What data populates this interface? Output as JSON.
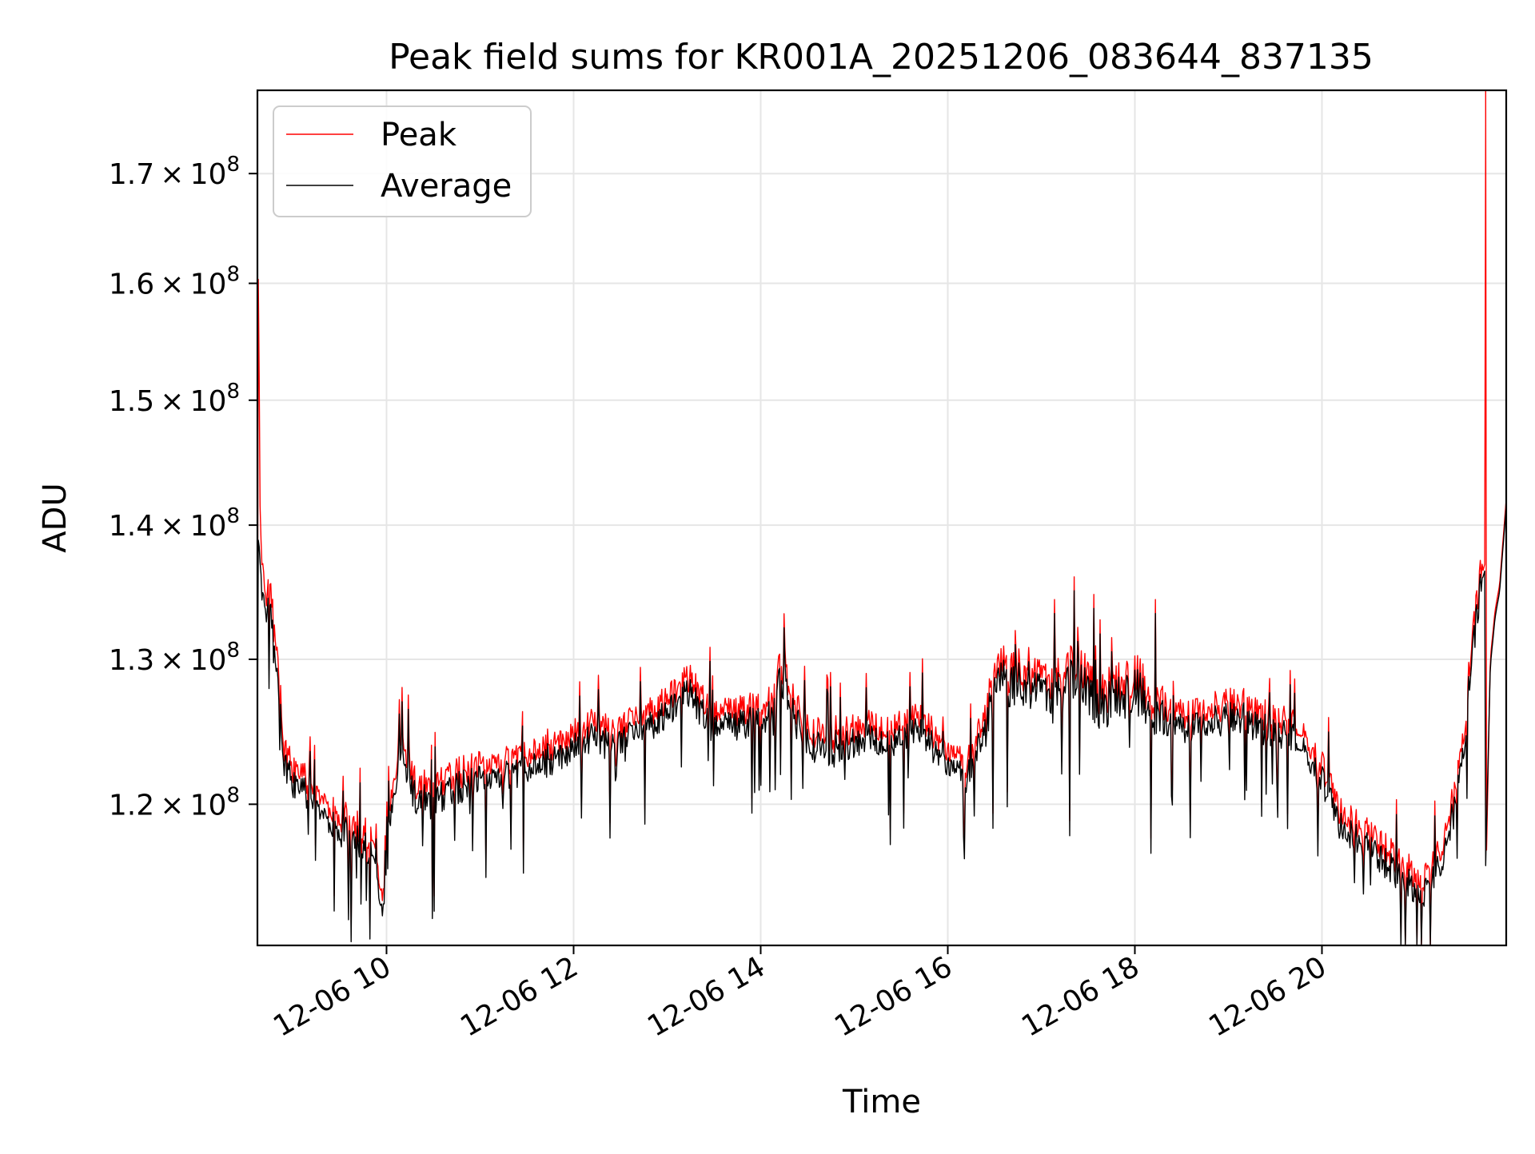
{
  "chart_data": {
    "type": "line",
    "title": "Peak field sums for KR001A_20251206_083644_837135",
    "xlabel": "Time",
    "ylabel": "ADU",
    "y_scale": "log",
    "xlim_hours": [
      8.62,
      21.97
    ],
    "ylim": [
      111000000,
      178000000
    ],
    "x_ticks": [
      {
        "hours": 10,
        "label": "12-06 10"
      },
      {
        "hours": 12,
        "label": "12-06 12"
      },
      {
        "hours": 14,
        "label": "12-06 14"
      },
      {
        "hours": 16,
        "label": "12-06 16"
      },
      {
        "hours": 18,
        "label": "12-06 18"
      },
      {
        "hours": 20,
        "label": "12-06 20"
      }
    ],
    "y_ticks": [
      {
        "value": 120000000,
        "mantissa": "1.2",
        "exponent": "8"
      },
      {
        "value": 130000000,
        "mantissa": "1.3",
        "exponent": "8"
      },
      {
        "value": 140000000,
        "mantissa": "1.4",
        "exponent": "8"
      },
      {
        "value": 150000000,
        "mantissa": "1.5",
        "exponent": "8"
      },
      {
        "value": 160000000,
        "mantissa": "1.6",
        "exponent": "8"
      },
      {
        "value": 170000000,
        "mantissa": "1.7",
        "exponent": "8"
      }
    ],
    "y_tick_times": "×",
    "y_tick_base": "10",
    "grid": true,
    "legend_position": "top-left",
    "series": [
      {
        "name": "Peak",
        "color": "#ff0000",
        "points": [
          [
            8.62,
            126000000
          ],
          [
            8.63,
            162000000
          ],
          [
            8.65,
            140000000
          ],
          [
            8.7,
            133000000
          ],
          [
            8.75,
            136000000
          ],
          [
            8.8,
            131000000
          ],
          [
            8.85,
            129000000
          ],
          [
            8.9,
            123000000
          ],
          [
            9.0,
            122000000
          ],
          [
            9.2,
            121000000
          ],
          [
            9.4,
            119000000
          ],
          [
            9.6,
            118500000
          ],
          [
            9.85,
            117500000
          ],
          [
            9.97,
            113000000
          ],
          [
            10.05,
            120000000
          ],
          [
            10.15,
            124500000
          ],
          [
            10.3,
            121000000
          ],
          [
            10.5,
            120500000
          ],
          [
            10.7,
            121500000
          ],
          [
            11.0,
            122000000
          ],
          [
            11.3,
            122500000
          ],
          [
            11.6,
            123000000
          ],
          [
            11.9,
            124000000
          ],
          [
            12.1,
            125000000
          ],
          [
            12.4,
            124500000
          ],
          [
            12.7,
            125500000
          ],
          [
            13.0,
            126500000
          ],
          [
            13.2,
            128500000
          ],
          [
            13.5,
            125500000
          ],
          [
            13.8,
            126000000
          ],
          [
            14.1,
            126500000
          ],
          [
            14.2,
            129500000
          ],
          [
            14.5,
            124500000
          ],
          [
            14.8,
            124000000
          ],
          [
            15.1,
            125000000
          ],
          [
            15.4,
            124500000
          ],
          [
            15.7,
            125500000
          ],
          [
            16.0,
            123000000
          ],
          [
            16.2,
            122000000
          ],
          [
            16.4,
            125500000
          ],
          [
            16.55,
            129000000
          ],
          [
            16.8,
            128500000
          ],
          [
            17.1,
            127500000
          ],
          [
            17.4,
            129500000
          ],
          [
            17.6,
            127000000
          ],
          [
            17.8,
            127500000
          ],
          [
            18.0,
            128500000
          ],
          [
            18.2,
            126500000
          ],
          [
            18.5,
            125500000
          ],
          [
            18.8,
            126000000
          ],
          [
            19.1,
            126500000
          ],
          [
            19.4,
            125500000
          ],
          [
            19.7,
            125000000
          ],
          [
            20.0,
            122000000
          ],
          [
            20.2,
            119000000
          ],
          [
            20.5,
            117500000
          ],
          [
            20.8,
            116000000
          ],
          [
            21.0,
            115000000
          ],
          [
            21.1,
            114500000
          ],
          [
            21.2,
            116000000
          ],
          [
            21.35,
            118000000
          ],
          [
            21.5,
            123000000
          ],
          [
            21.6,
            130500000
          ],
          [
            21.7,
            136000000
          ],
          [
            21.74,
            137000000
          ],
          [
            21.75,
            178000000
          ],
          [
            21.76,
            117000000
          ],
          [
            21.8,
            130000000
          ],
          [
            21.85,
            133500000
          ],
          [
            21.9,
            135500000
          ],
          [
            21.97,
            142000000
          ]
        ]
      },
      {
        "name": "Average",
        "color": "#000000",
        "points": [
          [
            8.62,
            125000000
          ],
          [
            8.63,
            139500000
          ],
          [
            8.65,
            137000000
          ],
          [
            8.7,
            132500000
          ],
          [
            8.75,
            135000000
          ],
          [
            8.8,
            130000000
          ],
          [
            8.85,
            128000000
          ],
          [
            8.9,
            122500000
          ],
          [
            9.0,
            121500000
          ],
          [
            9.2,
            120500000
          ],
          [
            9.4,
            118500000
          ],
          [
            9.6,
            118000000
          ],
          [
            9.85,
            117000000
          ],
          [
            9.97,
            112500000
          ],
          [
            10.05,
            119500000
          ],
          [
            10.15,
            124000000
          ],
          [
            10.3,
            120500000
          ],
          [
            10.5,
            120000000
          ],
          [
            10.7,
            121000000
          ],
          [
            11.0,
            121500000
          ],
          [
            11.3,
            122000000
          ],
          [
            11.6,
            122500000
          ],
          [
            11.9,
            123500000
          ],
          [
            12.1,
            124500000
          ],
          [
            12.4,
            124000000
          ],
          [
            12.7,
            125000000
          ],
          [
            13.0,
            126000000
          ],
          [
            13.2,
            128000000
          ],
          [
            13.5,
            125000000
          ],
          [
            13.8,
            125500000
          ],
          [
            14.1,
            126000000
          ],
          [
            14.2,
            129000000
          ],
          [
            14.5,
            124000000
          ],
          [
            14.8,
            123500000
          ],
          [
            15.1,
            124500000
          ],
          [
            15.4,
            124000000
          ],
          [
            15.7,
            125000000
          ],
          [
            16.0,
            122500000
          ],
          [
            16.2,
            121500000
          ],
          [
            16.4,
            125000000
          ],
          [
            16.55,
            128500000
          ],
          [
            16.8,
            128000000
          ],
          [
            17.1,
            127000000
          ],
          [
            17.4,
            129000000
          ],
          [
            17.6,
            126500000
          ],
          [
            17.8,
            127000000
          ],
          [
            18.0,
            128000000
          ],
          [
            18.2,
            126000000
          ],
          [
            18.5,
            125000000
          ],
          [
            18.8,
            125500000
          ],
          [
            19.1,
            126000000
          ],
          [
            19.4,
            125000000
          ],
          [
            19.7,
            124500000
          ],
          [
            20.0,
            121500000
          ],
          [
            20.2,
            118500000
          ],
          [
            20.5,
            117000000
          ],
          [
            20.8,
            115500000
          ],
          [
            21.0,
            114500000
          ],
          [
            21.1,
            114000000
          ],
          [
            21.2,
            115500000
          ],
          [
            21.35,
            117500000
          ],
          [
            21.5,
            122500000
          ],
          [
            21.6,
            130000000
          ],
          [
            21.7,
            135500000
          ],
          [
            21.74,
            136500000
          ],
          [
            21.75,
            116000000
          ],
          [
            21.8,
            129500000
          ],
          [
            21.85,
            133000000
          ],
          [
            21.9,
            135000000
          ],
          [
            21.97,
            141500000
          ]
        ]
      }
    ]
  }
}
